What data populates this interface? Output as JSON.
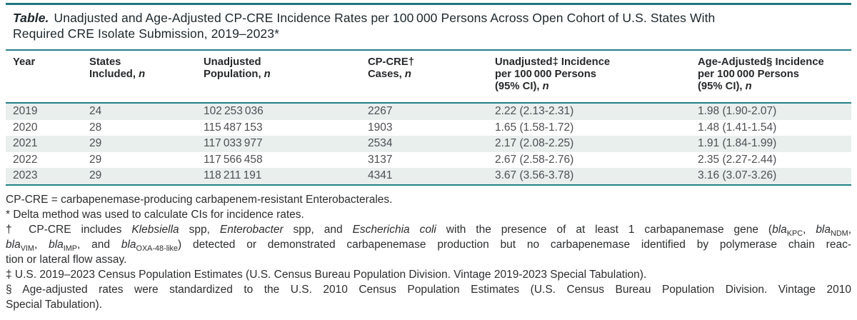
{
  "colors": {
    "rule_teal": "#23818a",
    "row_shade": "#e8efed",
    "title_text": "#1d272c",
    "body_text": "#4e4f53"
  },
  "title": {
    "label": "Table.",
    "text": "Unadjusted and Age-Adjusted CP-CRE Incidence Rates per 100 000 Persons Across Open Cohort of U.S. States With Required CRE Isolate Submission, 2019–2023*"
  },
  "table": {
    "columns": [
      {
        "id": "year",
        "lines": [
          "Year"
        ]
      },
      {
        "id": "states-included",
        "lines": [
          "States",
          "Included, <i>n</i>"
        ]
      },
      {
        "id": "unadjusted-population",
        "lines": [
          "Unadjusted",
          "Population, <i>n</i>"
        ]
      },
      {
        "id": "cp-cre-cases",
        "lines": [
          "CP-CRE†",
          "Cases, <i>n</i>"
        ]
      },
      {
        "id": "unadjusted-incidence",
        "lines": [
          "Unadjusted‡ Incidence",
          "per 100 000 Persons",
          "(95% CI), <i>n</i>"
        ]
      },
      {
        "id": "age-adjusted-incidence",
        "lines": [
          "Age-Adjusted§ Incidence",
          "per 100 000 Persons",
          "(95% CI), <i>n</i>"
        ]
      }
    ],
    "rows": [
      [
        "2019",
        "24",
        "102 253 036",
        "2267",
        "2.22 (2.13-2.31)",
        "1.98 (1.90-2.07)"
      ],
      [
        "2020",
        "28",
        "115 487 153",
        "1903",
        "1.65 (1.58-1.72)",
        "1.48 (1.41-1.54)"
      ],
      [
        "2021",
        "29",
        "117 033 977",
        "2534",
        "2.17 (2.08-2.25)",
        "1.91 (1.84-1.99)"
      ],
      [
        "2022",
        "29",
        "117 566 458",
        "3137",
        "2.67 (2.58-2.76)",
        "2.35 (2.27-2.44)"
      ],
      [
        "2023",
        "29",
        "118 211 191",
        "4341",
        "3.67 (3.56-3.78)",
        "3.16 (3.07-3.26)"
      ]
    ]
  },
  "footnotes": [
    {
      "justify": false,
      "lines": [
        "CP-CRE = carbapenemase-producing carbapenem-resistant Enterobacterales."
      ]
    },
    {
      "justify": false,
      "lines": [
        "* Delta method was used to calculate CIs for incidence rates."
      ]
    },
    {
      "justify": true,
      "lines": [
        "† CP-CRE includes <i>Klebsiella</i> spp, <i>Enterobacter</i> spp, and <i>Escherichia coli</i> with the presence of at least 1 carbapanemase gene (<i>bla</i><sub>KPC</sub>, <i>bla</i><sub>NDM</sub>,",
        "<i>bla</i><sub>VIM</sub>, <i>bla</i><sub>IMP</sub>, and <i>bla</i><sub>OXA-48-like</sub>) detected or demonstrated carbapenemase production but no carbapenemase identified by polymerase chain reac-",
        "tion or lateral flow assay."
      ]
    },
    {
      "justify": false,
      "lines": [
        "‡ U.S. 2019–2023 Census Population Estimates (U.S. Census Bureau Population Division. Vintage 2019-2023 Special Tabulation)."
      ]
    },
    {
      "justify": true,
      "lines": [
        "§ Age-adjusted rates were standardized to the U.S. 2010 Census Population Estimates (U.S. Census Bureau Population Division. Vintage 2010",
        "Special Tabulation)."
      ]
    }
  ]
}
